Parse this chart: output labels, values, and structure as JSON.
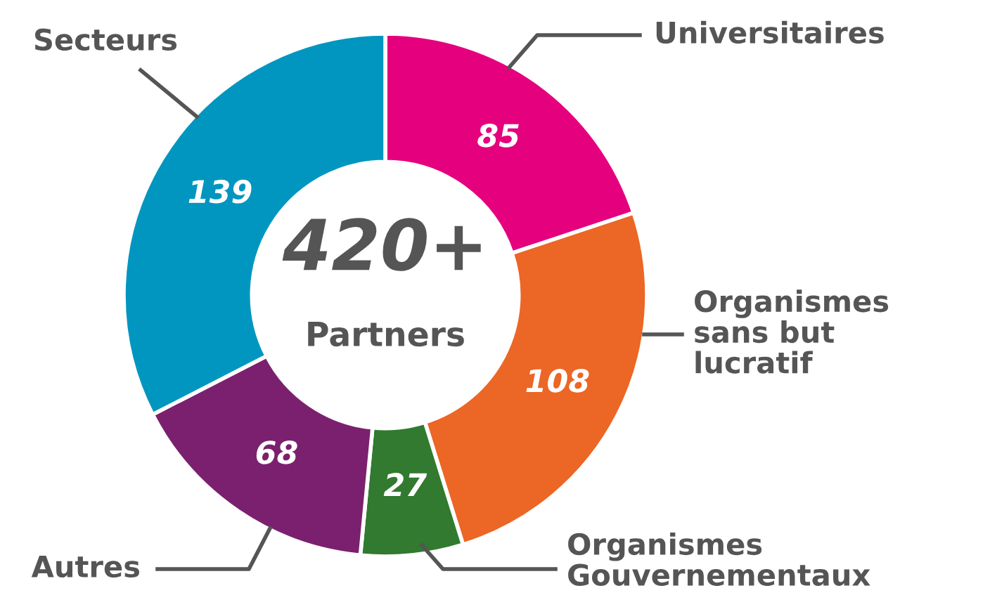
{
  "chart_data": {
    "type": "donut",
    "categories": [
      "Universitaires",
      "Organismes\nsans but\nlucratif",
      "Organismes\nGouvernementaux",
      "Autres",
      "Secteurs"
    ],
    "values": [
      85,
      108,
      27,
      68,
      139
    ],
    "colors": [
      "#e5007e",
      "#ec6625",
      "#317a2f",
      "#7b206e",
      "#0096bf"
    ],
    "data_labels": true,
    "annotations": [
      "420+",
      "Partners"
    ]
  }
}
